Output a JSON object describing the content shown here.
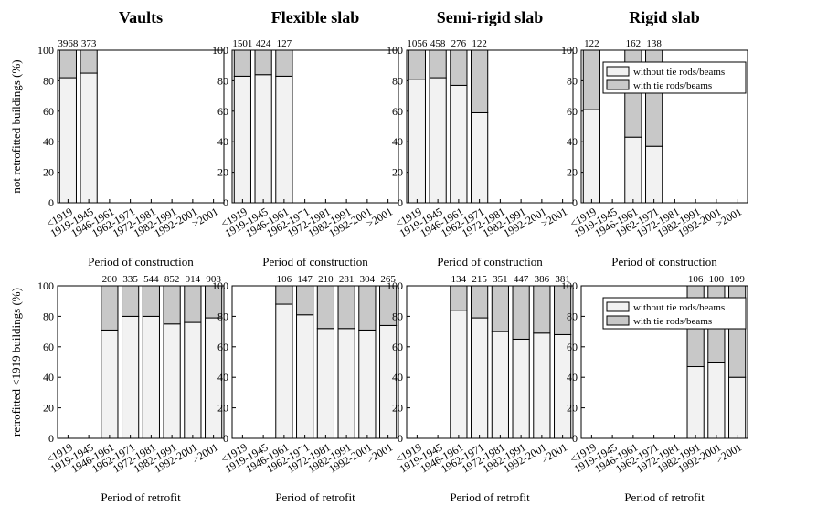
{
  "figure": {
    "row_ylabels": [
      "not retrofitted buildings (%)",
      "retrofitted <1919 buildings (%)"
    ],
    "row_xlabels": [
      "Period of construction",
      "Period of retrofit"
    ],
    "column_titles": [
      "Vaults",
      "Flexible slab",
      "Semi-rigid slab",
      "Rigid slab"
    ],
    "colors": {
      "without": "#f2f2f2",
      "with": "#c8c8c8",
      "axis": "#000000"
    }
  },
  "chart_data": [
    {
      "type": "bar",
      "stacked": true,
      "panel": "Vaults",
      "row": "not retrofitted",
      "categories": [
        "<1919",
        "1919-1945",
        "1946-1961",
        "1962-1971",
        "1972-1981",
        "1982-1991",
        "1992-2001",
        ">2001"
      ],
      "series": [
        {
          "name": "without tie rods/beams",
          "values": [
            82,
            85,
            null,
            null,
            null,
            null,
            null,
            null
          ]
        },
        {
          "name": "with tie rods/beams",
          "values": [
            18,
            15,
            null,
            null,
            null,
            null,
            null,
            null
          ]
        }
      ],
      "counts": [
        "3968",
        "373",
        "",
        "",
        "",
        "",
        "",
        ""
      ],
      "ylim": [
        0,
        100
      ],
      "yticks": [
        "0",
        "20",
        "40",
        "60",
        "80",
        "100"
      ],
      "xlabel": "Period of construction",
      "ylabel": "not retrofitted buildings (%)",
      "legend": false
    },
    {
      "type": "bar",
      "stacked": true,
      "panel": "Flexible slab",
      "row": "not retrofitted",
      "categories": [
        "<1919",
        "1919-1945",
        "1946-1961",
        "1962-1971",
        "1972-1981",
        "1982-1991",
        "1992-2001",
        ">2001"
      ],
      "series": [
        {
          "name": "without tie rods/beams",
          "values": [
            83,
            84,
            83,
            null,
            null,
            null,
            null,
            null
          ]
        },
        {
          "name": "with tie rods/beams",
          "values": [
            17,
            16,
            17,
            null,
            null,
            null,
            null,
            null
          ]
        }
      ],
      "counts": [
        "1501",
        "424",
        "127",
        "",
        "",
        "",
        "",
        ""
      ],
      "ylim": [
        0,
        100
      ],
      "yticks": [
        "0",
        "20",
        "40",
        "60",
        "80",
        "100"
      ],
      "xlabel": "Period of construction",
      "ylabel": "",
      "legend": false
    },
    {
      "type": "bar",
      "stacked": true,
      "panel": "Semi-rigid slab",
      "row": "not retrofitted",
      "categories": [
        "<1919",
        "1919-1945",
        "1946-1961",
        "1962-1971",
        "1972-1981",
        "1982-1991",
        "1992-2001",
        ">2001"
      ],
      "series": [
        {
          "name": "without tie rods/beams",
          "values": [
            81,
            82,
            77,
            59,
            null,
            null,
            null,
            null
          ]
        },
        {
          "name": "with tie rods/beams",
          "values": [
            19,
            18,
            23,
            41,
            null,
            null,
            null,
            null
          ]
        }
      ],
      "counts": [
        "1056",
        "458",
        "276",
        "122",
        "",
        "",
        "",
        ""
      ],
      "ylim": [
        0,
        100
      ],
      "yticks": [
        "0",
        "20",
        "40",
        "60",
        "80",
        "100"
      ],
      "xlabel": "Period of construction",
      "ylabel": "",
      "legend": false
    },
    {
      "type": "bar",
      "stacked": true,
      "panel": "Rigid slab",
      "row": "not retrofitted",
      "categories": [
        "<1919",
        "1919-1945",
        "1946-1961",
        "1962-1971",
        "1972-1981",
        "1982-1991",
        "1992-2001",
        ">2001"
      ],
      "series": [
        {
          "name": "without tie rods/beams",
          "values": [
            61,
            null,
            43,
            37,
            null,
            null,
            null,
            null
          ]
        },
        {
          "name": "with tie rods/beams",
          "values": [
            39,
            null,
            57,
            63,
            null,
            null,
            null,
            null
          ]
        }
      ],
      "counts": [
        "122",
        "",
        "162",
        "138",
        "",
        "",
        "",
        ""
      ],
      "ylim": [
        0,
        100
      ],
      "yticks": [
        "0",
        "20",
        "40",
        "60",
        "80",
        "100"
      ],
      "xlabel": "Period of construction",
      "ylabel": "",
      "legend": true,
      "legend_position": "top"
    },
    {
      "type": "bar",
      "stacked": true,
      "panel": "Vaults",
      "row": "retrofitted",
      "categories": [
        "<1919",
        "1919-1945",
        "1946-1961",
        "1962-1971",
        "1972-1981",
        "1982-1991",
        "1992-2001",
        ">2001"
      ],
      "series": [
        {
          "name": "without tie rods/beams",
          "values": [
            null,
            null,
            71,
            80,
            80,
            75,
            76,
            79
          ]
        },
        {
          "name": "with tie rods/beams",
          "values": [
            null,
            null,
            29,
            20,
            20,
            25,
            24,
            21
          ]
        }
      ],
      "counts": [
        "",
        "",
        "200",
        "335",
        "544",
        "852",
        "914",
        "908"
      ],
      "ylim": [
        0,
        100
      ],
      "yticks": [
        "0",
        "20",
        "40",
        "60",
        "80",
        "100"
      ],
      "xlabel": "Period of retrofit",
      "ylabel": "retrofitted <1919 buildings (%)",
      "legend": false
    },
    {
      "type": "bar",
      "stacked": true,
      "panel": "Flexible slab",
      "row": "retrofitted",
      "categories": [
        "<1919",
        "1919-1945",
        "1946-1961",
        "1962-1971",
        "1972-1981",
        "1982-1991",
        "1992-2001",
        ">2001"
      ],
      "series": [
        {
          "name": "without tie rods/beams",
          "values": [
            null,
            null,
            88,
            81,
            72,
            72,
            71,
            74
          ]
        },
        {
          "name": "with tie rods/beams",
          "values": [
            null,
            null,
            12,
            19,
            28,
            28,
            29,
            26
          ]
        }
      ],
      "counts": [
        "",
        "",
        "106",
        "147",
        "210",
        "281",
        "304",
        "265"
      ],
      "ylim": [
        0,
        100
      ],
      "yticks": [
        "0",
        "20",
        "40",
        "60",
        "80",
        "100"
      ],
      "xlabel": "Period of retrofit",
      "ylabel": "",
      "legend": false
    },
    {
      "type": "bar",
      "stacked": true,
      "panel": "Semi-rigid slab",
      "row": "retrofitted",
      "categories": [
        "<1919",
        "1919-1945",
        "1946-1961",
        "1962-1971",
        "1972-1981",
        "1982-1991",
        "1992-2001",
        ">2001"
      ],
      "series": [
        {
          "name": "without tie rods/beams",
          "values": [
            null,
            null,
            84,
            79,
            70,
            65,
            69,
            68
          ]
        },
        {
          "name": "with tie rods/beams",
          "values": [
            null,
            null,
            16,
            21,
            30,
            35,
            31,
            32
          ]
        }
      ],
      "counts": [
        "",
        "",
        "134",
        "215",
        "351",
        "447",
        "386",
        "381"
      ],
      "ylim": [
        0,
        100
      ],
      "yticks": [
        "0",
        "20",
        "40",
        "60",
        "80",
        "100"
      ],
      "xlabel": "Period of retrofit",
      "ylabel": "",
      "legend": false
    },
    {
      "type": "bar",
      "stacked": true,
      "panel": "Rigid slab",
      "row": "retrofitted",
      "categories": [
        "<1919",
        "1919-1945",
        "1946-1961",
        "1962-1971",
        "1972-1981",
        "1982-1991",
        "1992-2001",
        ">2001"
      ],
      "series": [
        {
          "name": "without tie rods/beams",
          "values": [
            null,
            null,
            null,
            null,
            null,
            47,
            50,
            40
          ]
        },
        {
          "name": "with tie rods/beams",
          "values": [
            null,
            null,
            null,
            null,
            null,
            53,
            50,
            60
          ]
        }
      ],
      "counts": [
        "",
        "",
        "",
        "",
        "",
        "106",
        "100",
        "109"
      ],
      "ylim": [
        0,
        100
      ],
      "yticks": [
        "0",
        "20",
        "40",
        "60",
        "80",
        "100"
      ],
      "xlabel": "Period of retrofit",
      "ylabel": "",
      "legend": true,
      "legend_position": "top"
    }
  ]
}
